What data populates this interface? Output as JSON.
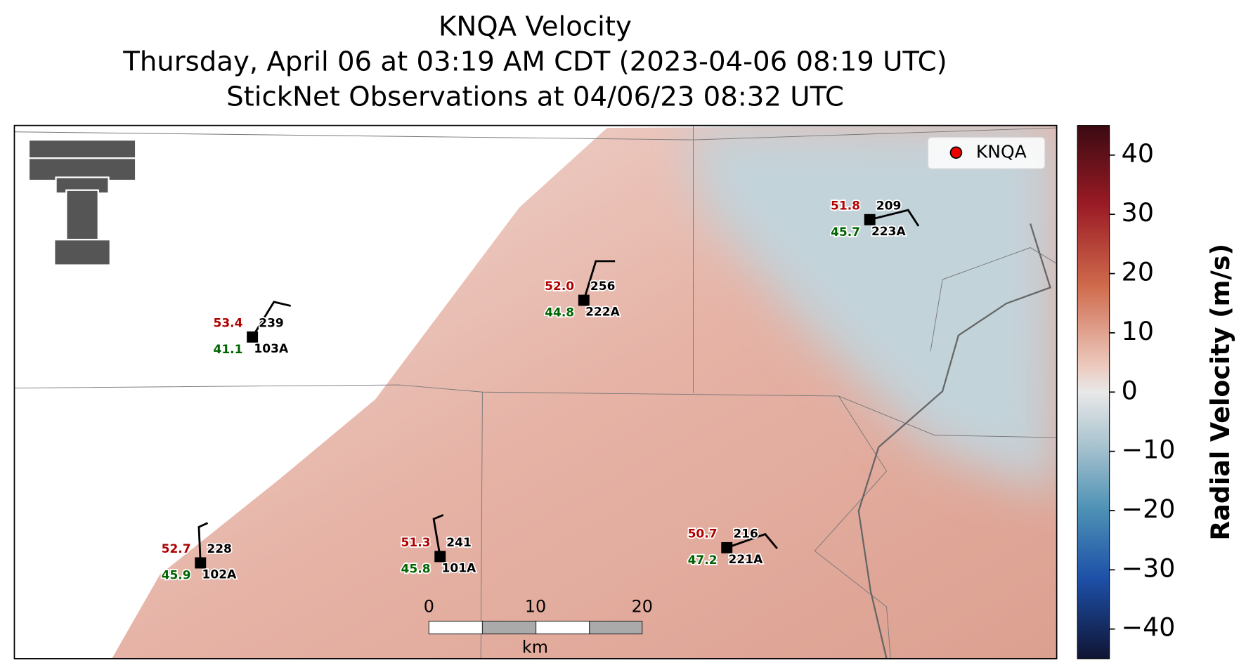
{
  "title": [
    "KNQA Velocity",
    "Thursday, April 06 at 03:19 AM CDT (2023-04-06 08:19 UTC)",
    "StickNet Observations at 04/06/23 08:32 UTC"
  ],
  "legend": "KNQA",
  "stations": [
    {
      "id": "103A",
      "temperature": "53.4",
      "dewpoint": "41.1",
      "value": "239"
    },
    {
      "id": "222A",
      "temperature": "52.0",
      "dewpoint": "44.8",
      "value": "256"
    },
    {
      "id": "223A",
      "temperature": "51.8",
      "dewpoint": "45.7",
      "value": "209"
    },
    {
      "id": "102A",
      "temperature": "52.7",
      "dewpoint": "45.9",
      "value": "228"
    },
    {
      "id": "101A",
      "temperature": "51.3",
      "dewpoint": "45.8",
      "value": "241"
    },
    {
      "id": "221A",
      "temperature": "50.7",
      "dewpoint": "47.2",
      "value": "216"
    }
  ],
  "colorbar": {
    "label": "Radial Velocity (m/s)",
    "lim": [
      -45,
      45
    ],
    "ticks": [
      40,
      30,
      20,
      10,
      0,
      {
        "value": -10,
        "label": "−10"
      },
      {
        "value": -20,
        "label": "−20"
      },
      {
        "value": -30,
        "label": "−30"
      },
      {
        "value": -40,
        "label": "−40"
      }
    ]
  },
  "scale_bar": {
    "ticks": [
      0,
      10,
      20
    ],
    "unit": "km"
  }
}
